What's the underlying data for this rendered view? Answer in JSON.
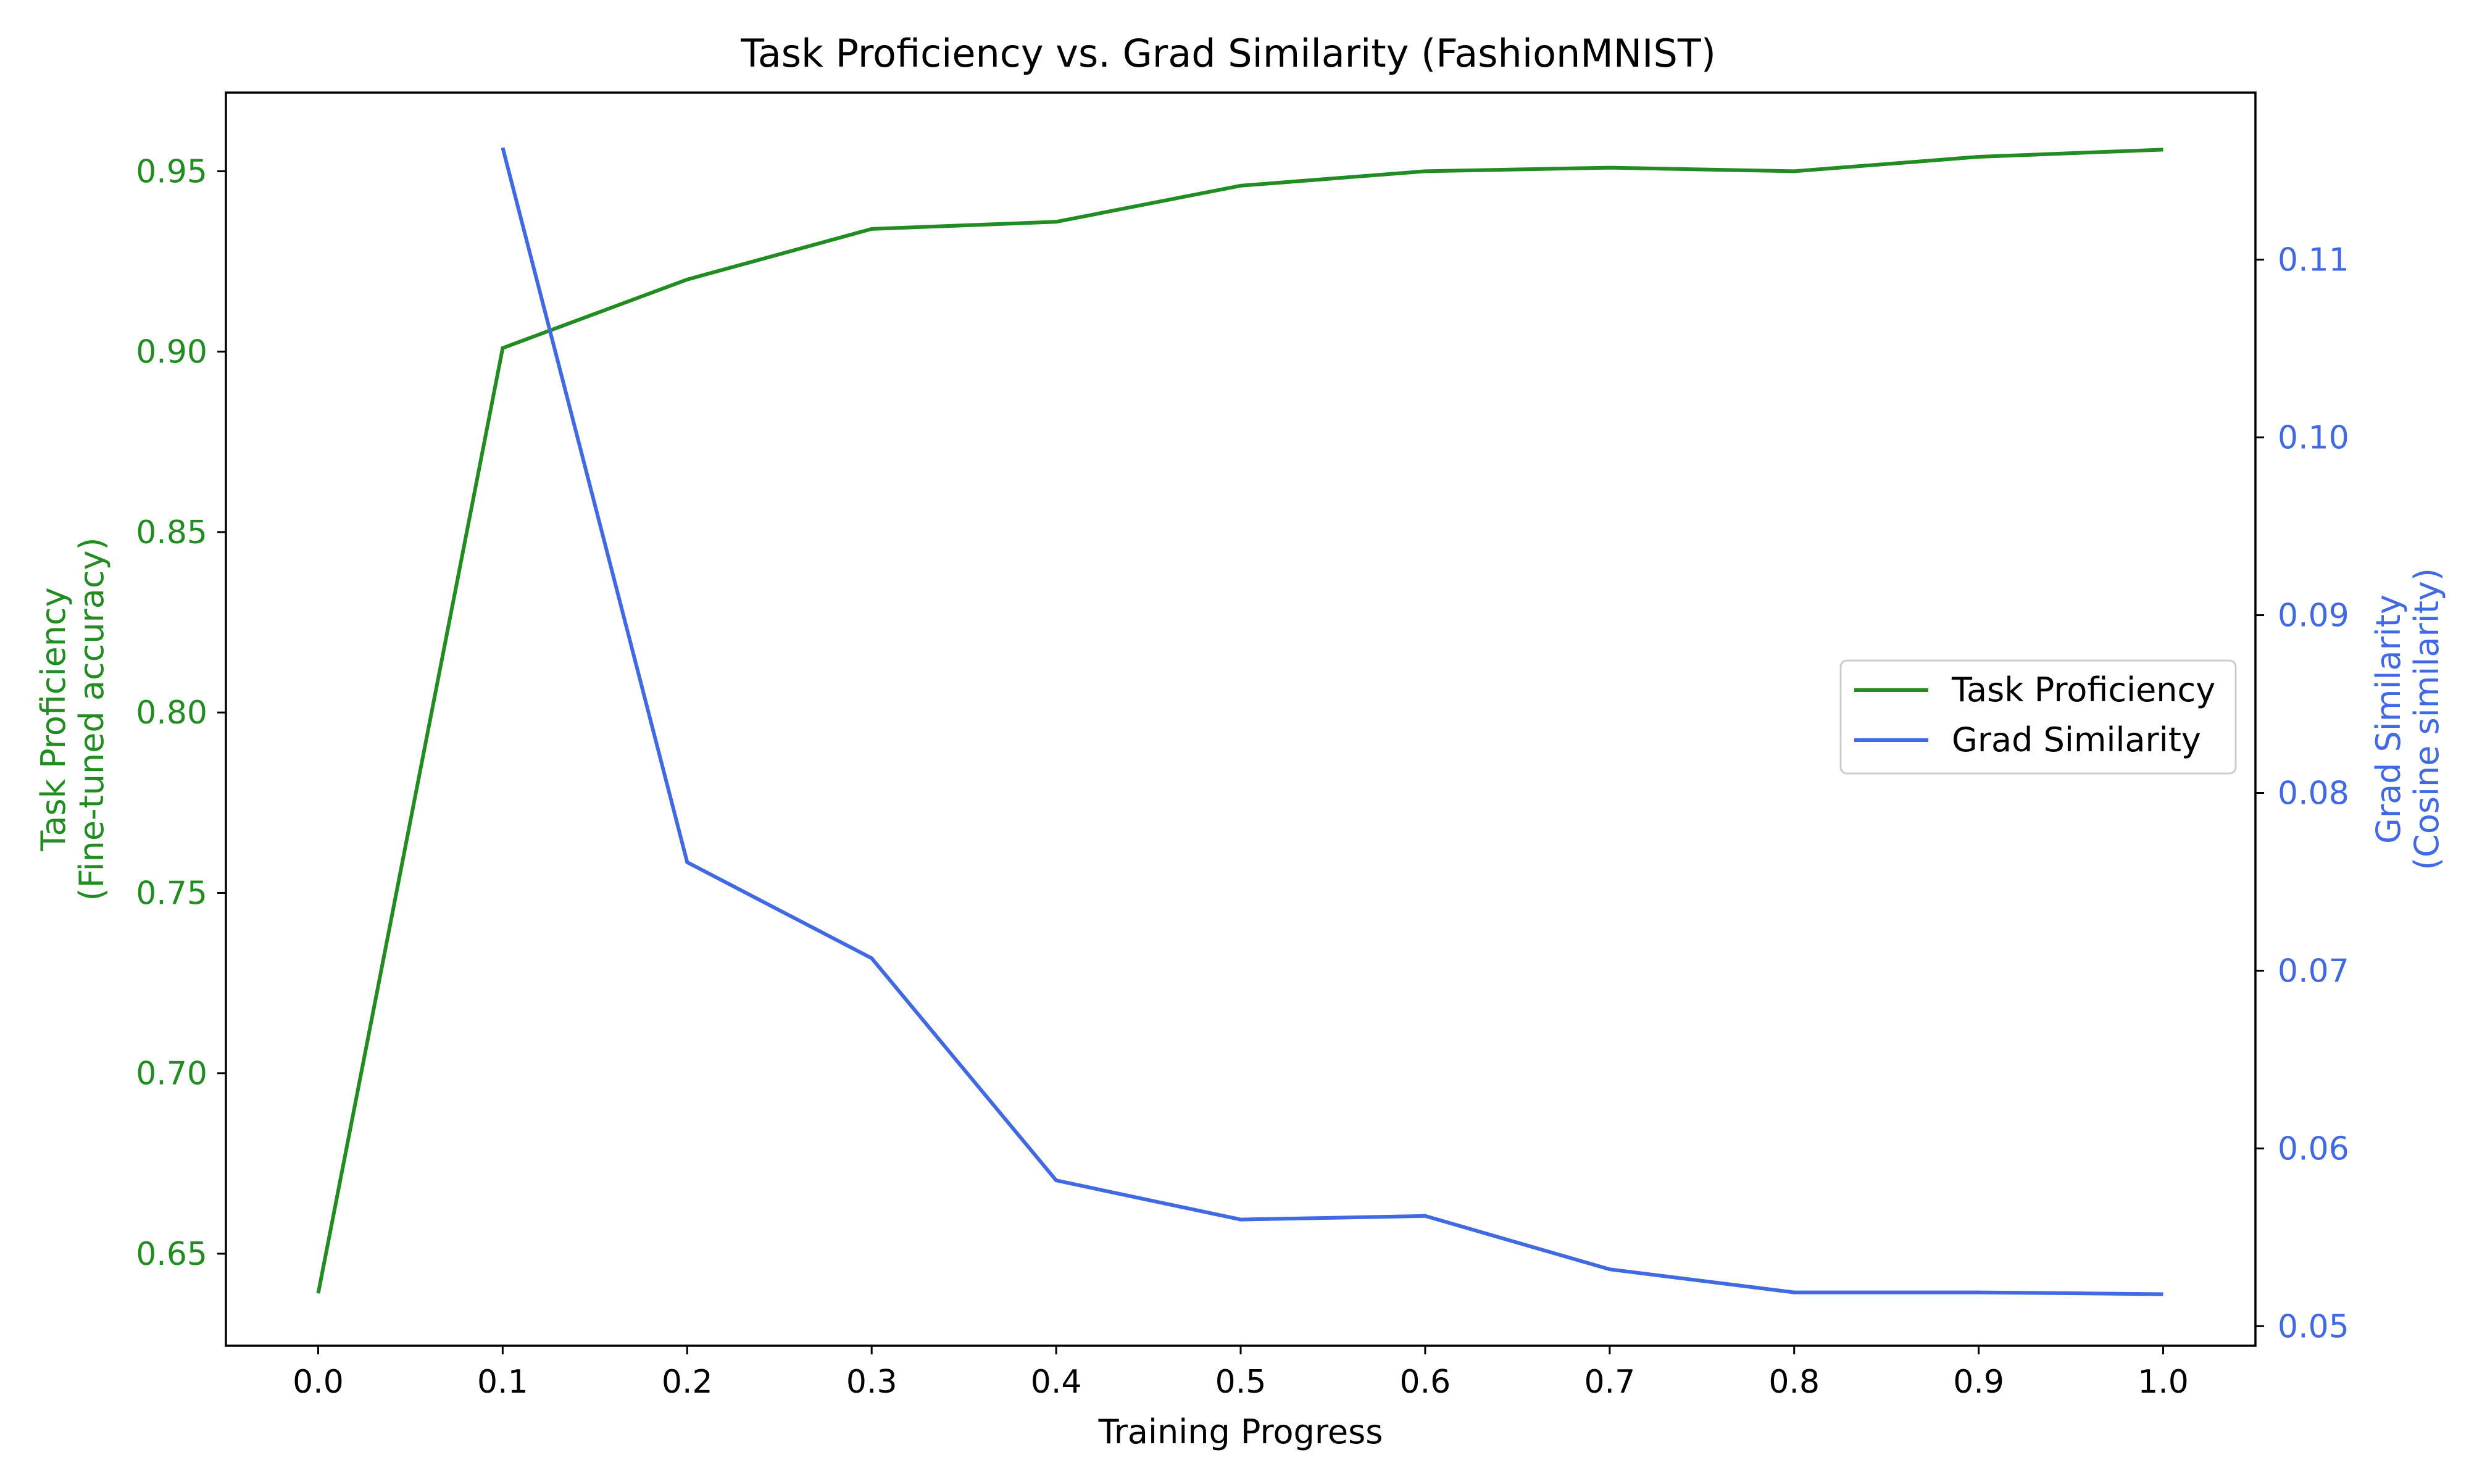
{
  "chart_data": {
    "type": "line",
    "title": "Task Proficiency vs. Grad Similarity (FashionMNIST)",
    "xlabel": "Training Progress",
    "ylabel_left_line1": "Task Proficiency",
    "ylabel_left_line2": "(Fine-tuned accuracy)",
    "ylabel_right_line1": "Grad Similarity",
    "ylabel_right_line2": "(Cosine similarity)",
    "x": [
      0.0,
      0.1,
      0.2,
      0.3,
      0.4,
      0.5,
      0.6,
      0.7,
      0.8,
      0.9,
      1.0
    ],
    "xlim": [
      -0.05,
      1.05
    ],
    "xticks": [
      0.0,
      0.1,
      0.2,
      0.3,
      0.4,
      0.5,
      0.6,
      0.7,
      0.8,
      0.9,
      1.0
    ],
    "xtick_labels": [
      "0.0",
      "0.1",
      "0.2",
      "0.3",
      "0.4",
      "0.5",
      "0.6",
      "0.7",
      "0.8",
      "0.9",
      "1.0"
    ],
    "ylim_left": [
      0.6245,
      0.9718
    ],
    "yticks_left": [
      0.65,
      0.7,
      0.75,
      0.8,
      0.85,
      0.9,
      0.95
    ],
    "ytick_labels_left": [
      "0.65",
      "0.70",
      "0.75",
      "0.80",
      "0.85",
      "0.90",
      "0.95"
    ],
    "ylim_right": [
      0.0489,
      0.1194
    ],
    "yticks_right": [
      0.05,
      0.06,
      0.07,
      0.08,
      0.09,
      0.1,
      0.11
    ],
    "ytick_labels_right": [
      "0.05",
      "0.06",
      "0.07",
      "0.08",
      "0.09",
      "0.10",
      "0.11"
    ],
    "series": [
      {
        "name": "Task Proficiency",
        "axis": "left",
        "color": "#228B22",
        "x": [
          0.0,
          0.1,
          0.2,
          0.3,
          0.4,
          0.5,
          0.6,
          0.7,
          0.8,
          0.9,
          1.0
        ],
        "values": [
          0.639,
          0.901,
          0.92,
          0.934,
          0.936,
          0.946,
          0.95,
          0.951,
          0.95,
          0.954,
          0.956
        ]
      },
      {
        "name": "Grad Similarity",
        "axis": "right",
        "color": "#4169E1",
        "x": [
          0.1,
          0.2,
          0.3,
          0.4,
          0.5,
          0.6,
          0.7,
          0.8,
          0.9,
          1.0
        ],
        "values": [
          0.1163,
          0.0761,
          0.0707,
          0.0582,
          0.056,
          0.0562,
          0.0532,
          0.0519,
          0.0519,
          0.0518
        ]
      }
    ],
    "legend_position": "center-right",
    "grid": false,
    "left_axis_color": "#228B22",
    "right_axis_color": "#4169E1"
  }
}
